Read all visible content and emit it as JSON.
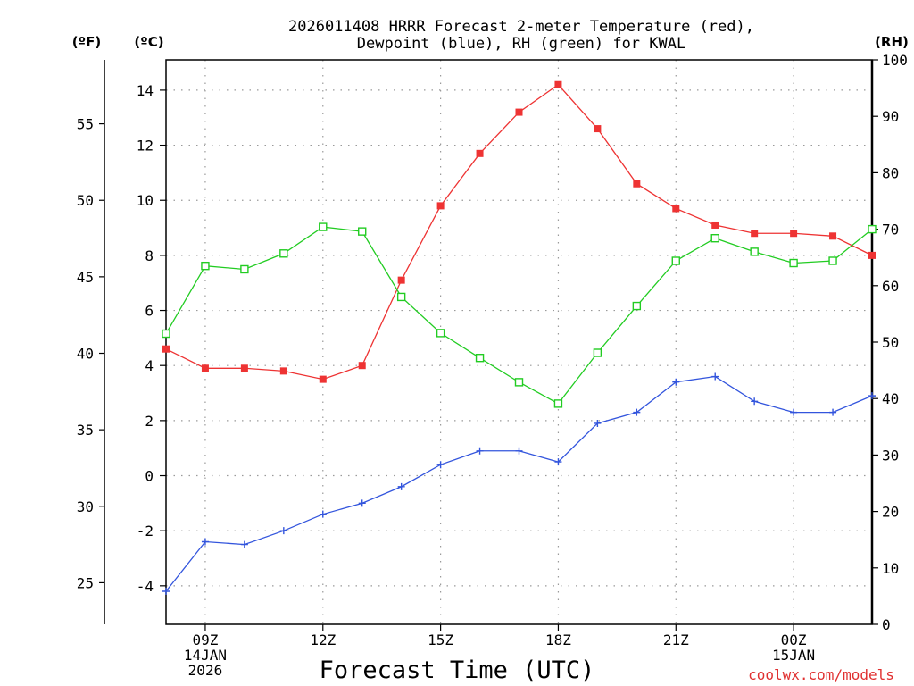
{
  "title_line1": "2026011408 HRRR Forecast 2-meter Temperature (red),",
  "title_line2": "Dewpoint (blue), RH (green) for KWAL",
  "units": {
    "fahrenheit": "(ºF)",
    "celsius": "(ºC)",
    "rh": "(RH)"
  },
  "x_axis_title": "Forecast Time (UTC)",
  "credit": "coolwx.com/models",
  "colors": {
    "temperature": "#ee3333",
    "dewpoint": "#3355dd",
    "rh": "#22cc22",
    "grid": "#9a9a9a"
  },
  "chart_data": {
    "type": "line",
    "title": "2026011408 HRRR Forecast 2-meter Temperature (red), Dewpoint (blue), RH (green) for KWAL",
    "xlabel": "Forecast Time (UTC)",
    "x_hours": [
      8,
      9,
      10,
      11,
      12,
      13,
      14,
      15,
      16,
      17,
      18,
      19,
      20,
      21,
      22,
      23,
      24,
      25,
      26
    ],
    "x_range": [
      8,
      26
    ],
    "x_ticks": [
      {
        "hour": 9,
        "lines": [
          "09Z",
          "14JAN",
          "2026"
        ]
      },
      {
        "hour": 12,
        "lines": [
          "12Z"
        ]
      },
      {
        "hour": 15,
        "lines": [
          "15Z"
        ]
      },
      {
        "hour": 18,
        "lines": [
          "18Z"
        ]
      },
      {
        "hour": 21,
        "lines": [
          "21Z"
        ]
      },
      {
        "hour": 24,
        "lines": [
          "00Z",
          "15JAN"
        ]
      }
    ],
    "left_axis_celsius": {
      "label": "(ºC)",
      "range": [
        -5.4,
        15.1
      ],
      "ticks": [
        "-4",
        "-2",
        "0",
        "2",
        "4",
        "6",
        "8",
        "10",
        "12",
        "14"
      ]
    },
    "left_axis_fahrenheit": {
      "label": "(ºF)",
      "ticks": [
        "25",
        "30",
        "35",
        "40",
        "45",
        "50",
        "55"
      ]
    },
    "right_axis_rh": {
      "label": "(RH)",
      "range": [
        0,
        100
      ],
      "ticks": [
        "0",
        "10",
        "20",
        "30",
        "40",
        "50",
        "60",
        "70",
        "80",
        "90",
        "100"
      ]
    },
    "series": [
      {
        "name": "2-meter Temperature",
        "units": "C",
        "color": "red",
        "marker": "filled-square",
        "values": [
          4.6,
          3.9,
          3.9,
          3.8,
          3.5,
          4.0,
          7.1,
          9.8,
          11.7,
          13.2,
          14.2,
          12.6,
          10.6,
          9.7,
          9.1,
          8.8,
          8.8,
          8.7,
          8.0
        ]
      },
      {
        "name": "Dewpoint",
        "units": "C",
        "color": "blue",
        "marker": "plus",
        "values": [
          -4.2,
          -2.4,
          -2.5,
          -2.0,
          -1.4,
          -1.0,
          -0.4,
          0.4,
          0.9,
          0.9,
          0.5,
          1.9,
          2.3,
          3.4,
          3.6,
          2.7,
          2.3,
          2.3,
          2.9
        ]
      },
      {
        "name": "Relative Humidity",
        "units": "%",
        "color": "green",
        "marker": "open-square",
        "values": [
          51.5,
          63.5,
          62.9,
          65.7,
          70.4,
          69.6,
          58.0,
          51.6,
          47.2,
          42.9,
          39.1,
          48.1,
          56.4,
          64.4,
          68.4,
          66.0,
          64.0,
          64.4,
          70.0
        ]
      }
    ]
  }
}
